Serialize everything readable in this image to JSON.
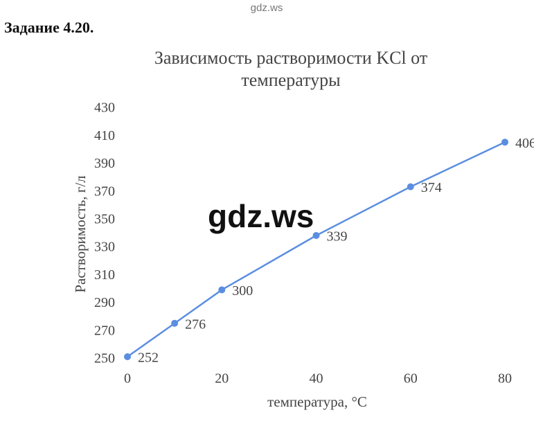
{
  "watermark_top": "gdz.ws",
  "heading": "Задание 4.20.",
  "watermark": "gdz.ws",
  "chart_data": {
    "type": "line",
    "title": "Зависимость растворимости KCl от температуры",
    "x_label": "температура, °C",
    "y_label": "Растворимость, г/л",
    "x": [
      0,
      10,
      20,
      40,
      60,
      80
    ],
    "values": [
      252,
      276,
      300,
      339,
      374,
      406
    ],
    "color": "#5b8ee0",
    "xlim": [
      0,
      80
    ],
    "xticks": [
      0,
      20,
      40,
      60,
      80
    ],
    "ylim": [
      250,
      430
    ],
    "yticks": [
      250,
      270,
      290,
      310,
      330,
      350,
      370,
      390,
      410,
      430
    ],
    "grid": false
  }
}
